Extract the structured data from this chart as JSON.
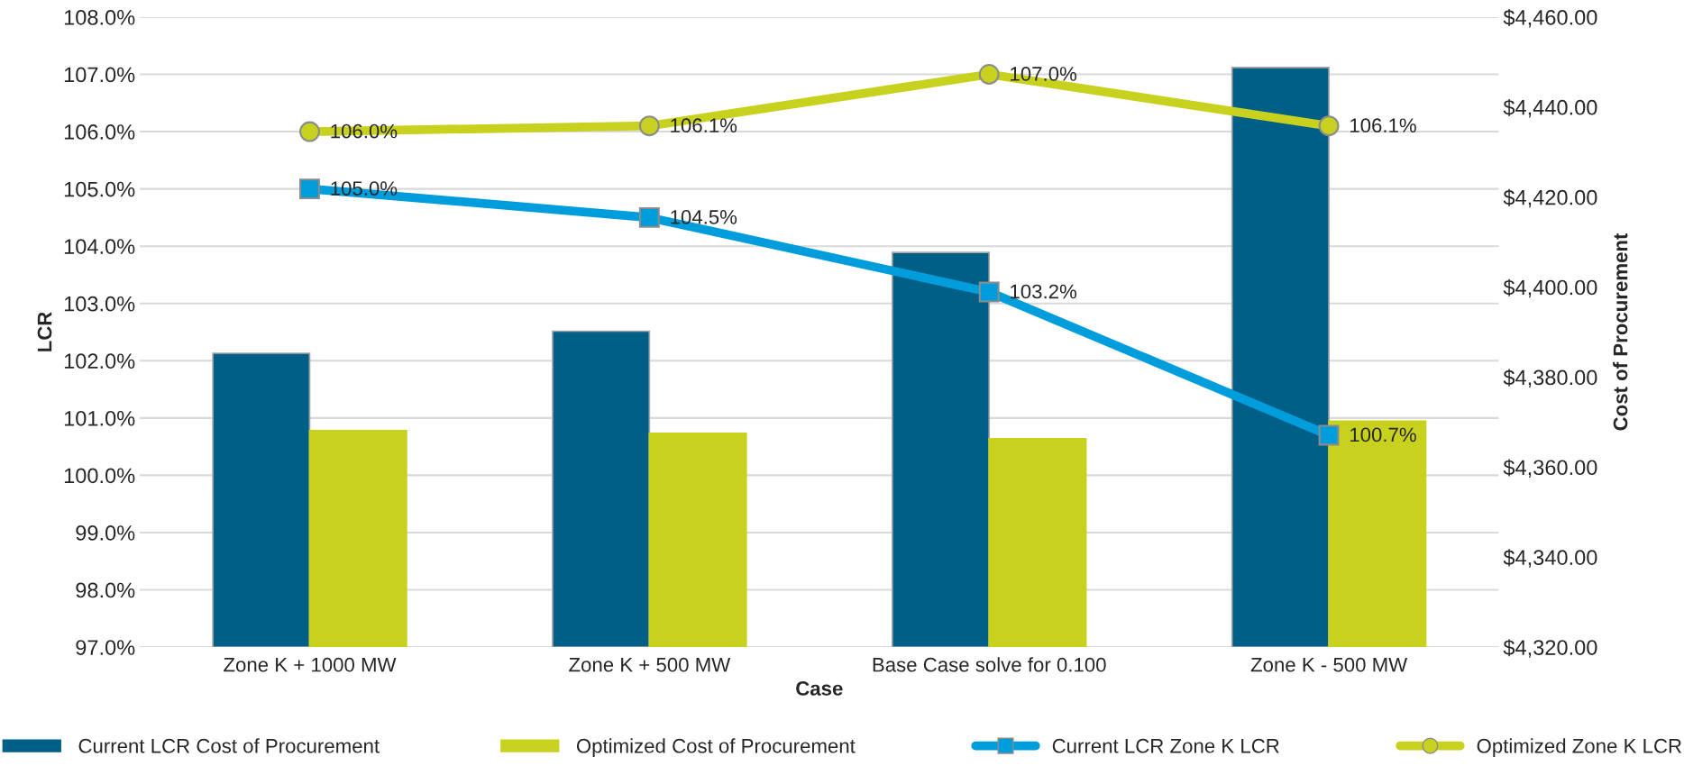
{
  "chart_data": {
    "type": "bar",
    "categories": [
      "Zone K + 1000 MW",
      "Zone K + 500 MW",
      "Base Case solve for 0.100",
      "Zone K - 500 MW"
    ],
    "xlabel": "Case",
    "ylabel": "LCR",
    "y2label": "Cost of Procurement",
    "series": [
      {
        "name": "Current LCR Cost of Procurement",
        "axis": "y2",
        "color": "#005f87",
        "values": [
          4385.3,
          4390.2,
          4407.7,
          4448.8
        ]
      },
      {
        "name": "Optimized Cost of Procurement",
        "axis": "y2",
        "color": "#c8d21e",
        "values": [
          4368.1,
          4367.5,
          4366.3,
          4370.2
        ]
      },
      {
        "name": "Current LCR Zone K LCR",
        "type": "line",
        "axis": "y",
        "color": "#009ddc",
        "marker": "square",
        "values": [
          105.0,
          104.5,
          103.2,
          100.7
        ],
        "value_labels": [
          "105.0%",
          "104.5%",
          "103.2%",
          "100.7%"
        ]
      },
      {
        "name": "Optimized Zone K LCR",
        "type": "line",
        "axis": "y",
        "color": "#c8d21e",
        "marker": "circle",
        "values": [
          106.0,
          106.1,
          107.0,
          106.1
        ],
        "value_labels": [
          "106.0%",
          "106.1%",
          "107.0%",
          "106.1%"
        ]
      }
    ],
    "ylim": [
      97,
      108
    ],
    "yticks": [
      {
        "value": 97,
        "label": "97.0%"
      },
      {
        "value": 98,
        "label": "98.0%"
      },
      {
        "value": 99,
        "label": "99.0%"
      },
      {
        "value": 100,
        "label": "100.0%"
      },
      {
        "value": 101,
        "label": "101.0%"
      },
      {
        "value": 102,
        "label": "102.0%"
      },
      {
        "value": 103,
        "label": "103.0%"
      },
      {
        "value": 104,
        "label": "104.0%"
      },
      {
        "value": 105,
        "label": "105.0%"
      },
      {
        "value": 106,
        "label": "106.0%"
      },
      {
        "value": 107,
        "label": "107.0%"
      },
      {
        "value": 108,
        "label": "108.0%"
      }
    ],
    "y2lim": [
      4320,
      4460
    ],
    "y2ticks": [
      {
        "value": 4320,
        "label": "$4,320.00"
      },
      {
        "value": 4340,
        "label": "$4,340.00"
      },
      {
        "value": 4360,
        "label": "$4,360.00"
      },
      {
        "value": 4380,
        "label": "$4,380.00"
      },
      {
        "value": 4400,
        "label": "$4,400.00"
      },
      {
        "value": 4420,
        "label": "$4,420.00"
      },
      {
        "value": 4440,
        "label": "$4,440.00"
      },
      {
        "value": 4460,
        "label": "$4,460.00"
      }
    ],
    "grid": "y",
    "legend": "bottom"
  }
}
